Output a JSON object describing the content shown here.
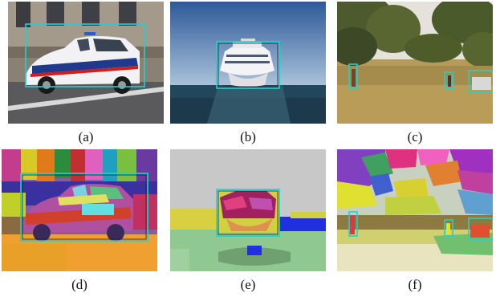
{
  "figure": {
    "panels": [
      {
        "caption": "(a)",
        "content": "photo-police-car"
      },
      {
        "caption": "(b)",
        "content": "photo-cruise-ship"
      },
      {
        "caption": "(c)",
        "content": "photo-field-people-car"
      },
      {
        "caption": "(d)",
        "content": "segmentation-police-car"
      },
      {
        "caption": "(e)",
        "content": "segmentation-cruise-ship"
      },
      {
        "caption": "(f)",
        "content": "segmentation-field"
      }
    ],
    "car_text": "POLICE",
    "box_color": "#20d0d0"
  }
}
